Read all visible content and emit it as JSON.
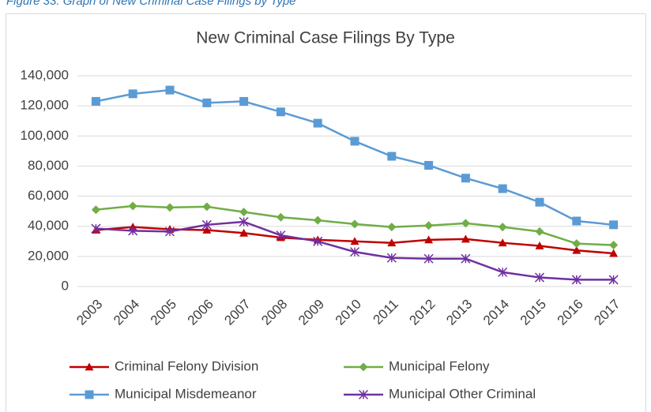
{
  "caption": "Figure 33: Graph of New Criminal Case Filings by Type",
  "chart_data": {
    "type": "line",
    "title": "New Criminal Case Filings By Type",
    "categories": [
      "2003",
      "2004",
      "2005",
      "2006",
      "2007",
      "2008",
      "2009",
      "2010",
      "2011",
      "2012",
      "2013",
      "2014",
      "2015",
      "2016",
      "2017"
    ],
    "series": [
      {
        "name": "Criminal Felony Division",
        "color": "#c00000",
        "marker": "triangle",
        "values": [
          37500,
          39500,
          38000,
          37500,
          35500,
          32500,
          31000,
          30000,
          29000,
          31000,
          31500,
          29000,
          27000,
          24000,
          22000
        ]
      },
      {
        "name": "Municipal Felony",
        "color": "#70ad47",
        "marker": "diamond",
        "values": [
          51000,
          53500,
          52500,
          53000,
          49500,
          46000,
          44000,
          41500,
          39500,
          40500,
          42000,
          39500,
          36500,
          28500,
          27500
        ]
      },
      {
        "name": "Municipal Misdemeanor",
        "color": "#5b9bd5",
        "marker": "square",
        "values": [
          123000,
          128000,
          130500,
          122000,
          123000,
          116000,
          108500,
          96500,
          86500,
          80500,
          72000,
          65000,
          56000,
          43500,
          41000
        ]
      },
      {
        "name": "Municipal Other Criminal",
        "color": "#7030a0",
        "marker": "star",
        "values": [
          38500,
          37000,
          36500,
          41000,
          43000,
          34000,
          30000,
          23000,
          19000,
          18500,
          18500,
          9500,
          6000,
          4500,
          4500
        ]
      }
    ],
    "ylim": [
      0,
      140000
    ],
    "yticks": [
      0,
      {
        "value": 20000,
        "label": "20,000"
      },
      {
        "value": 40000,
        "label": "40,000"
      },
      {
        "value": 60000,
        "label": "60,000"
      },
      {
        "value": 80000,
        "label": "80,000"
      },
      {
        "value": 100000,
        "label": "100,000"
      },
      {
        "value": 120000,
        "label": "120,000"
      },
      {
        "value": 140000,
        "label": "140,000"
      }
    ],
    "grid": true,
    "legend": "bottom"
  }
}
